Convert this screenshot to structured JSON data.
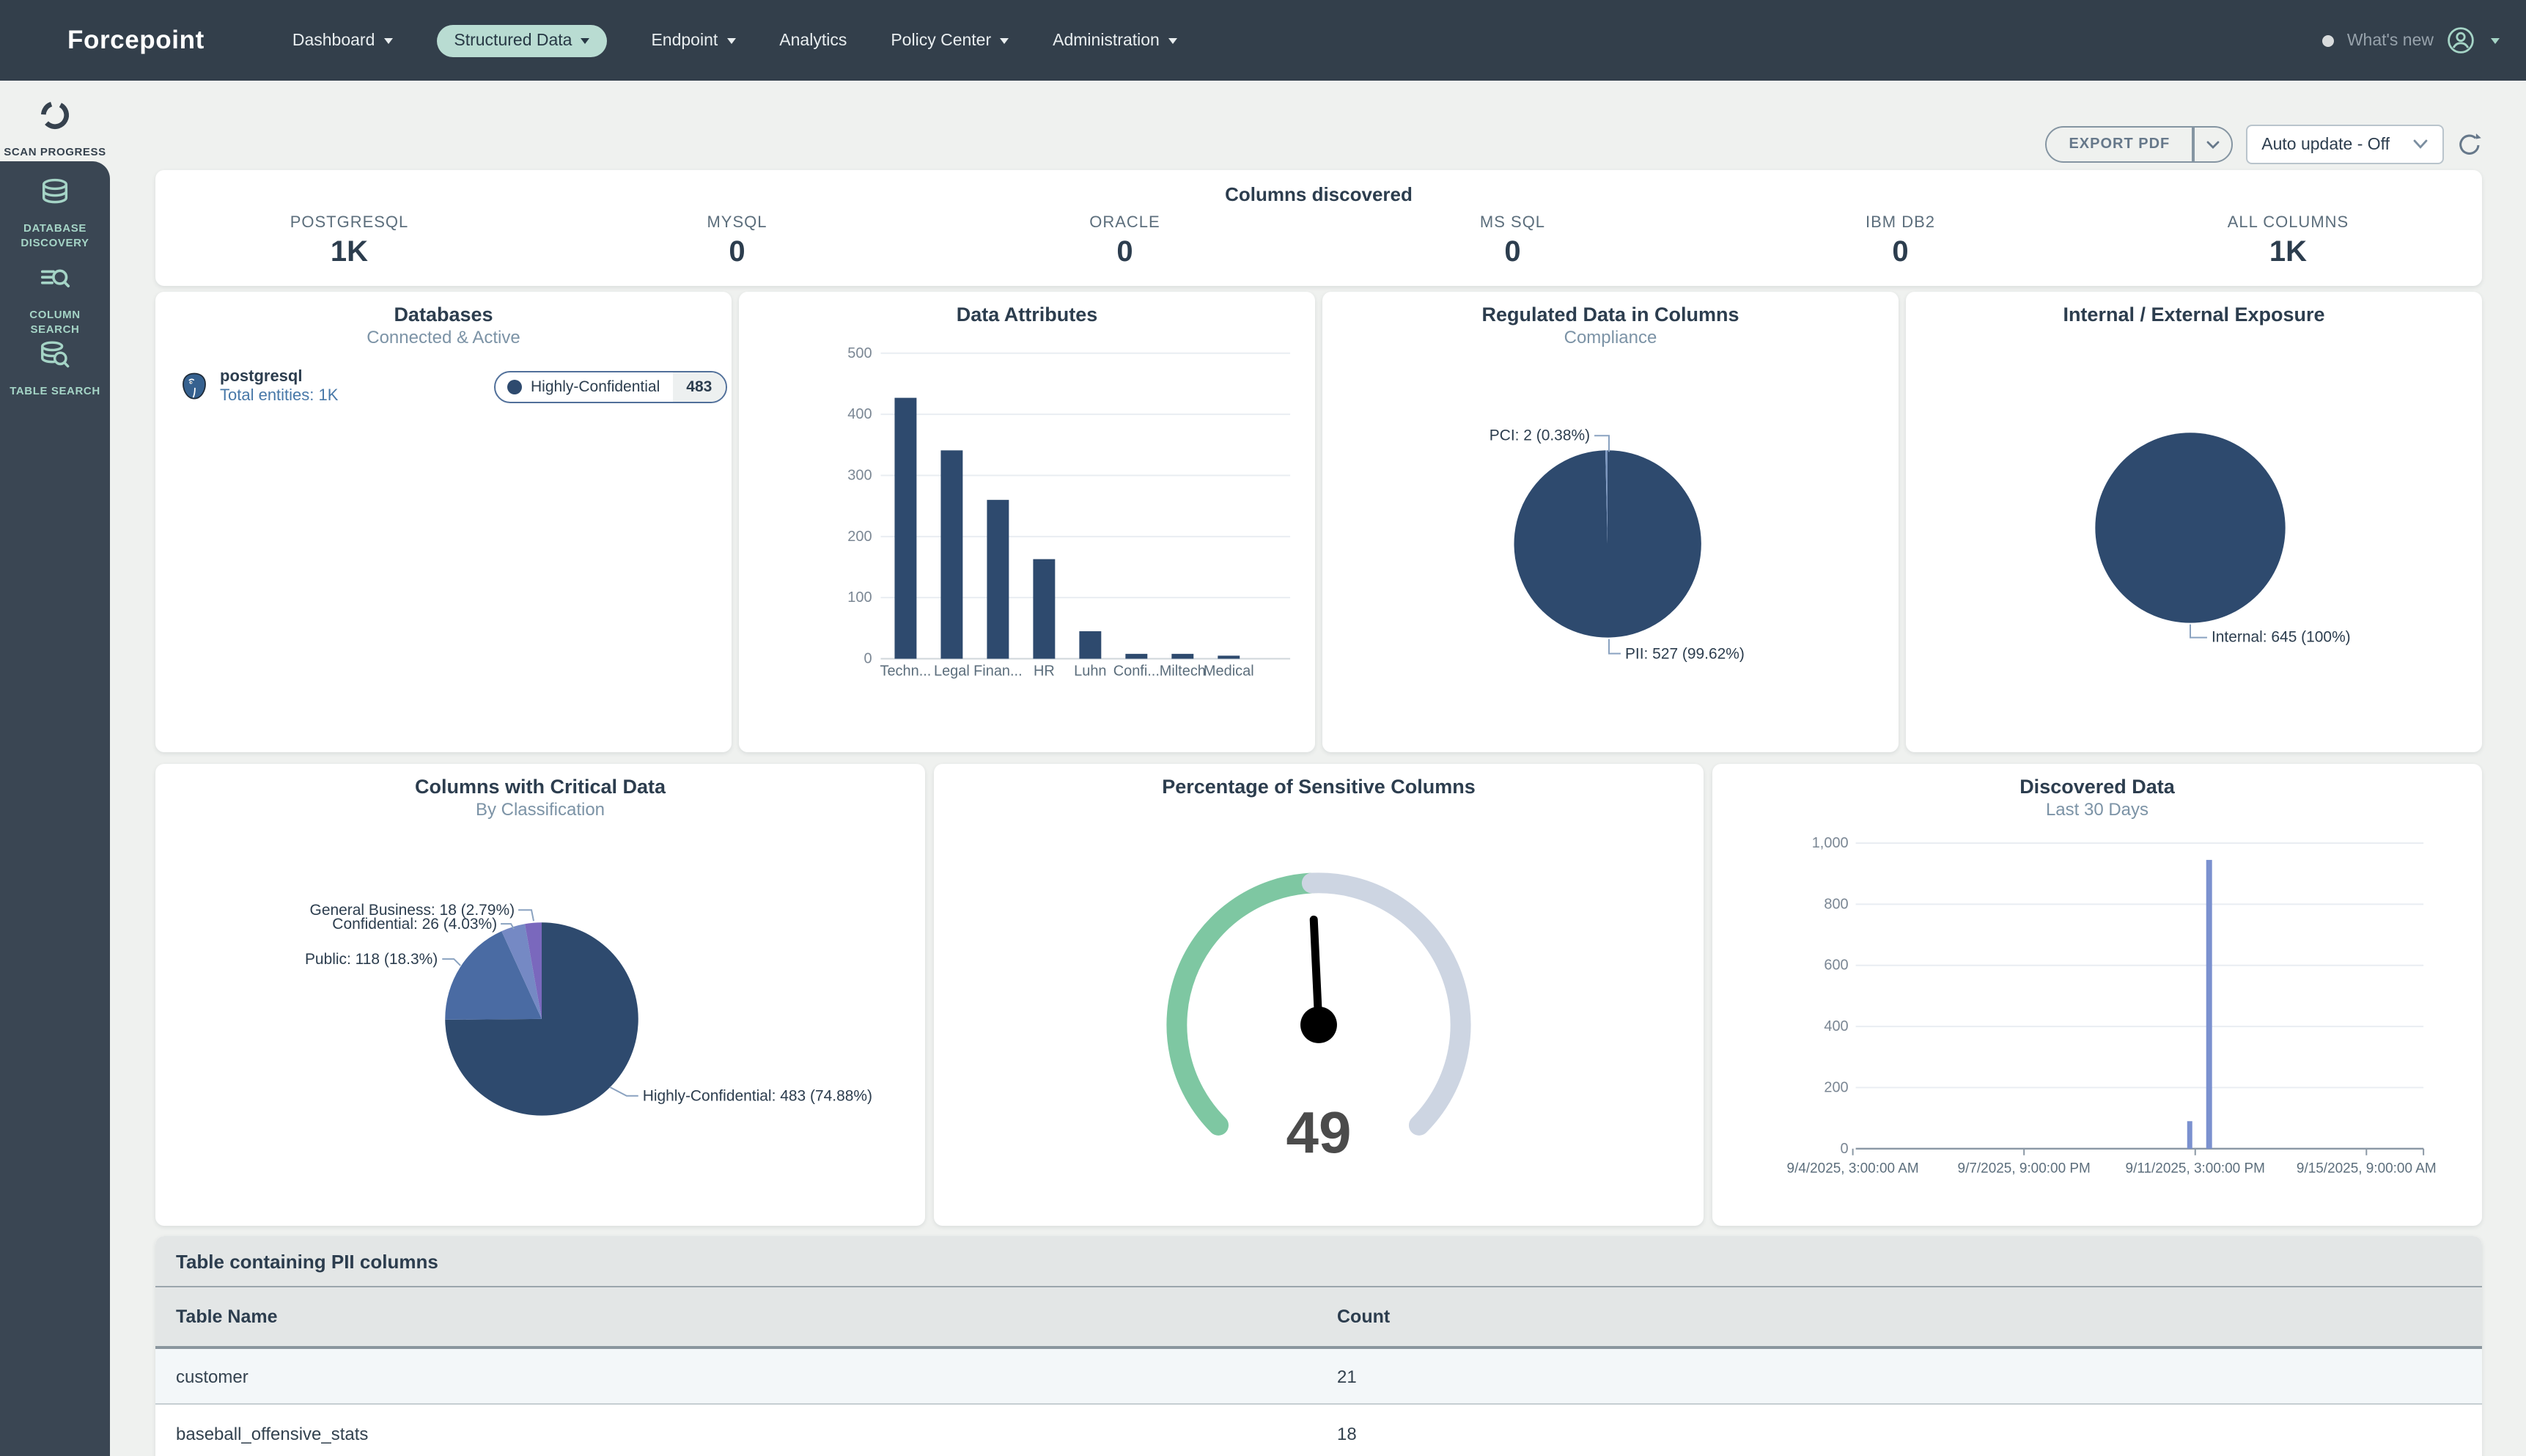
{
  "topbar": {
    "logo": "Forcepoint",
    "nav": [
      {
        "label": "Dashboard",
        "dropdown": true,
        "active": false
      },
      {
        "label": "Structured Data",
        "dropdown": true,
        "active": true
      },
      {
        "label": "Endpoint",
        "dropdown": true,
        "active": false
      },
      {
        "label": "Analytics",
        "dropdown": false,
        "active": false
      },
      {
        "label": "Policy Center",
        "dropdown": true,
        "active": false
      },
      {
        "label": "Administration",
        "dropdown": true,
        "active": false
      }
    ],
    "whats_new": "What's new",
    "accent_color": "#b9dcd2"
  },
  "sidebar": {
    "items": [
      {
        "label": "SCAN PROGRESS",
        "icon": "scan-progress-icon",
        "active": true
      },
      {
        "label": "DATABASE DISCOVERY",
        "icon": "database-icon",
        "active": false
      },
      {
        "label": "COLUMN SEARCH",
        "icon": "column-search-icon",
        "active": false
      },
      {
        "label": "TABLE SEARCH",
        "icon": "table-search-icon",
        "active": false
      }
    ]
  },
  "controls": {
    "export_label": "EXPORT PDF",
    "auto_update": "Auto update - Off"
  },
  "stats": {
    "title": "Columns discovered",
    "items": [
      {
        "label": "POSTGRESQL",
        "value": "1K"
      },
      {
        "label": "MYSQL",
        "value": "0"
      },
      {
        "label": "ORACLE",
        "value": "0"
      },
      {
        "label": "MS SQL",
        "value": "0"
      },
      {
        "label": "IBM DB2",
        "value": "0"
      },
      {
        "label": "ALL COLUMNS",
        "value": "1K"
      }
    ]
  },
  "cards": {
    "databases": {
      "title": "Databases",
      "subtitle": "Connected & Active",
      "db_name": "postgresql",
      "total": "Total entities: 1K",
      "badge": {
        "label": "Highly-Confidential",
        "count": "483",
        "color": "#2e4a6e"
      }
    }
  },
  "chart_data": [
    {
      "id": "data_attributes",
      "type": "bar",
      "title": "Data Attributes",
      "categories": [
        "Techn...",
        "Legal",
        "Finan...",
        "HR",
        "Luhn",
        "Confi...",
        "Miltech",
        "Medical"
      ],
      "values": [
        427,
        341,
        260,
        163,
        45,
        8,
        8,
        5
      ],
      "ylim": [
        0,
        500
      ],
      "yticks": [
        0,
        100,
        200,
        300,
        400,
        500
      ],
      "bar_color": "#2e4a6e",
      "grid": true
    },
    {
      "id": "regulated_data",
      "type": "pie",
      "title": "Regulated Data in Columns",
      "subtitle": "Compliance",
      "slices": [
        {
          "name": "PII",
          "value": 527,
          "pct": "99.62%",
          "label": "PII: 527 (99.62%)",
          "color": "#2e4a6e"
        },
        {
          "name": "PCI",
          "value": 2,
          "pct": "0.38%",
          "label": "PCI: 2 (0.38%)",
          "color": "#7d98c0"
        }
      ]
    },
    {
      "id": "exposure",
      "type": "pie",
      "title": "Internal / External Exposure",
      "slices": [
        {
          "name": "Internal",
          "value": 645,
          "pct": "100%",
          "label": "Internal: 645 (100%)",
          "color": "#2e4a6e"
        }
      ]
    },
    {
      "id": "critical_columns",
      "type": "pie",
      "title": "Columns with Critical Data",
      "subtitle": "By Classification",
      "slices": [
        {
          "name": "Highly-Confidential",
          "value": 483,
          "pct": "74.88%",
          "label": "Highly-Confidential: 483 (74.88%)",
          "color": "#2e4a6e"
        },
        {
          "name": "Public",
          "value": 118,
          "pct": "18.3%",
          "label": "Public: 118 (18.3%)",
          "color": "#4a6ba3"
        },
        {
          "name": "Confidential",
          "value": 26,
          "pct": "4.03%",
          "label": "Confidential: 26 (4.03%)",
          "color": "#7589c4"
        },
        {
          "name": "General Business",
          "value": 18,
          "pct": "2.79%",
          "label": "General Business: 18 (2.79%)",
          "color": "#7a68bd"
        }
      ]
    },
    {
      "id": "sensitive_gauge",
      "type": "gauge",
      "title": "Percentage of Sensitive Columns",
      "value": 49,
      "min": 0,
      "max": 100,
      "fill_color": "#7ec7a2",
      "track_color": "#cdd5e2",
      "needle_color": "#000000"
    },
    {
      "id": "discovered_data",
      "type": "bar",
      "title": "Discovered Data",
      "subtitle": "Last 30 Days",
      "points": [
        {
          "x": "9/11/2025 (shortly before 3:00 PM tick)",
          "y": 90
        },
        {
          "x": "9/11/2025 (at 3:00 PM tick)",
          "y": 945
        }
      ],
      "xticks": [
        "9/4/2025, 3:00:00 AM",
        "9/7/2025, 9:00:00 PM",
        "9/11/2025, 3:00:00 PM",
        "9/15/2025, 9:00:00 AM"
      ],
      "ylim": [
        0,
        1000
      ],
      "ytick_labels": [
        "0",
        "200",
        "400",
        "600",
        "800",
        "1,000"
      ],
      "bar_color": "#7b91cf"
    }
  ],
  "table": {
    "title": "Table containing PII columns",
    "columns": [
      "Table Name",
      "Count"
    ],
    "rows": [
      [
        "customer",
        "21"
      ],
      [
        "baseball_offensive_stats",
        "18"
      ]
    ]
  }
}
